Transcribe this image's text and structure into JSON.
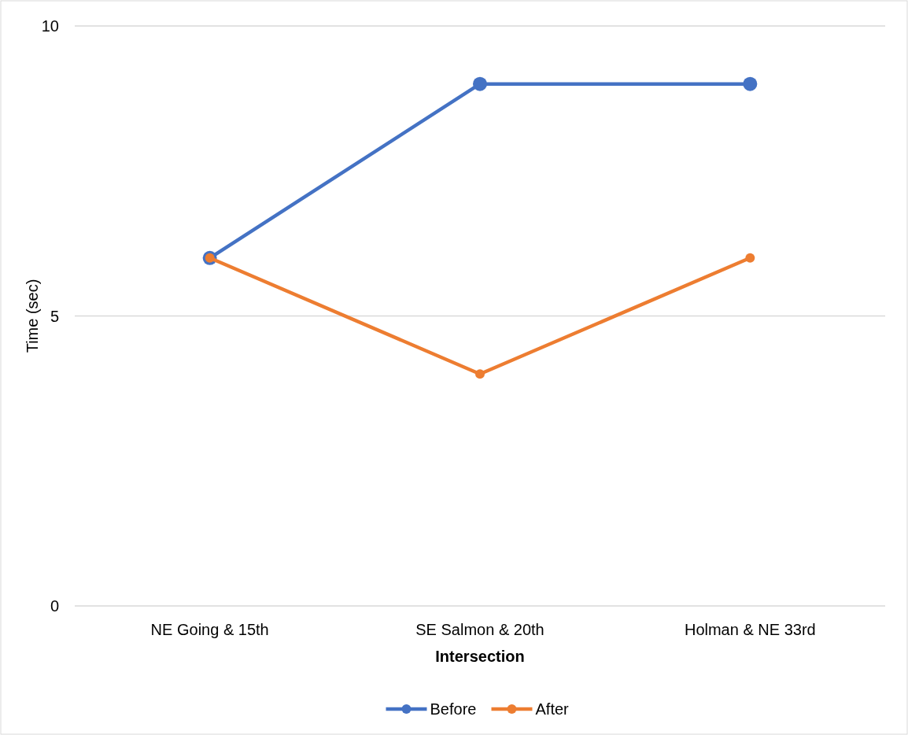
{
  "chart_data": {
    "type": "line",
    "xlabel": "Intersection",
    "ylabel": "Time (sec)",
    "categories": [
      "NE Going & 15th",
      "SE Salmon & 20th",
      "Holman & NE 33rd"
    ],
    "series": [
      {
        "name": "Before",
        "color": "#4472c4",
        "values": [
          6,
          9,
          9
        ]
      },
      {
        "name": "After",
        "color": "#ed7d31",
        "values": [
          6,
          4,
          6
        ]
      }
    ],
    "ylim": [
      0,
      10
    ],
    "yticks": [
      0,
      5,
      10
    ],
    "grid": "y",
    "legend": "bottom",
    "marker": "circle",
    "line_style": "solid"
  }
}
